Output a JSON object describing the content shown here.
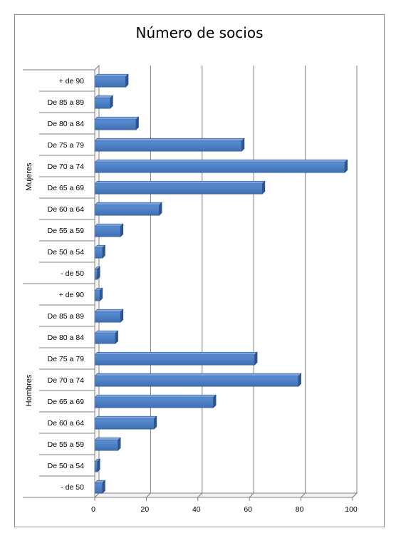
{
  "chart_data": {
    "type": "bar",
    "orientation": "horizontal",
    "style": "3d",
    "title": "Número de socios",
    "xlabel": "",
    "ylabel": "",
    "xlim": [
      0,
      100
    ],
    "x_ticks": [
      "0",
      "20",
      "40",
      "60",
      "80",
      "100"
    ],
    "grid": "vertical",
    "legend": "none",
    "bar_color": "#4a7cc1",
    "groups": [
      {
        "name": "Mujeres",
        "categories": [
          "+ de 90",
          "De 85 a 89",
          "De 80 a 84",
          "De 75 a 79",
          "De 70 a 74",
          "De 65 a 69",
          "De 60 a 64",
          "De 55 a 59",
          "De 50 a 54",
          "- de 50"
        ],
        "values": [
          12,
          6,
          16,
          57,
          97,
          65,
          25,
          10,
          3,
          1
        ]
      },
      {
        "name": "Hombres",
        "categories": [
          "+ de 90",
          "De 85 a 89",
          "De 80 a 84",
          "De 75 a 79",
          "De 70 a 74",
          "De 65 a 69",
          "De 60 a 64",
          "De 55 a 59",
          "De 50 a 54",
          "- de 50"
        ],
        "values": [
          2,
          10,
          8,
          62,
          79,
          46,
          23,
          9,
          1,
          3
        ]
      }
    ]
  }
}
